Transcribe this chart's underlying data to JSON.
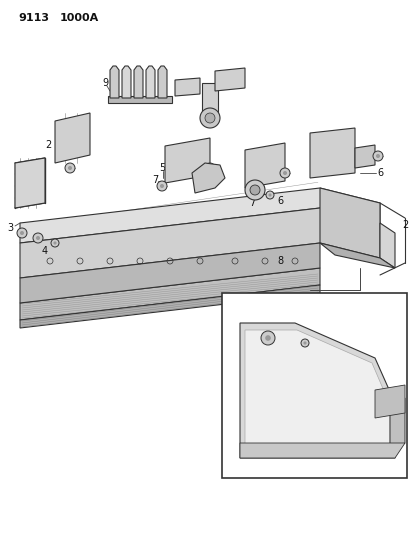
{
  "title_part1": "9113",
  "title_part2": "1000A",
  "bg_color": "#ffffff",
  "lc": "#333333",
  "label_color": "#111111",
  "figsize": [
    4.17,
    5.33
  ],
  "dpi": 100,
  "label_fs": 6.5
}
